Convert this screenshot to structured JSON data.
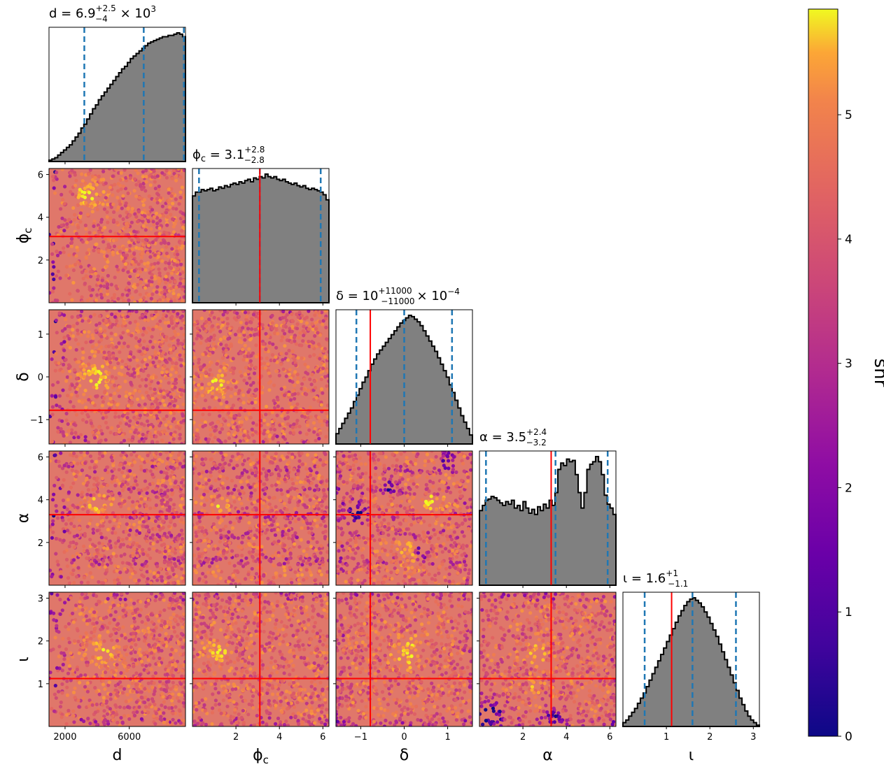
{
  "chart_data": {
    "type": "corner",
    "parameters": [
      {
        "key": "d",
        "label": "d",
        "range": [
          1000,
          9500
        ],
        "ticks": [
          2000,
          6000
        ],
        "truth": null,
        "quantiles": [
          3200,
          6900,
          9400
        ],
        "title": {
          "prefix": "d = ",
          "median": "6.9",
          "upper": "+2.5",
          "lower": "−4",
          "suffix": "× 10",
          "exp": "3"
        }
      },
      {
        "key": "phi_c",
        "label": "ϕ",
        "label_sub": "c",
        "range": [
          0,
          6.28
        ],
        "ticks": [
          2,
          4,
          6
        ],
        "truth": 3.1,
        "quantiles": [
          0.3,
          3.1,
          5.9
        ],
        "title": {
          "prefix": "ϕ",
          "prefix_sub": "c",
          "eq": " = ",
          "median": "3.1",
          "upper": "+2.8",
          "lower": "−2.8"
        }
      },
      {
        "key": "delta",
        "label": "δ",
        "range": [
          -1.57,
          1.57
        ],
        "ticks": [
          -1,
          0,
          1
        ],
        "truth": -0.78,
        "quantiles": [
          -1.1,
          0,
          1.1
        ],
        "title": {
          "prefix": "δ = ",
          "median": "10",
          "upper": "+11000",
          "lower": "−11000",
          "suffix": "× 10",
          "exp": "−4"
        }
      },
      {
        "key": "alpha",
        "label": "α",
        "range": [
          0,
          6.28
        ],
        "ticks": [
          2,
          4,
          6
        ],
        "truth": 3.3,
        "quantiles": [
          0.3,
          3.5,
          5.9
        ],
        "title": {
          "prefix": "α = ",
          "median": "3.5",
          "upper": "+2.4",
          "lower": "−3.2"
        }
      },
      {
        "key": "iota",
        "label": "ι",
        "range": [
          0,
          3.14
        ],
        "ticks": [
          1,
          2,
          3
        ],
        "truth": 1.12,
        "quantiles": [
          0.5,
          1.6,
          2.6
        ],
        "title": {
          "prefix": "ι = ",
          "median": "1.6",
          "upper": "+1",
          "lower": "−1.1"
        }
      }
    ],
    "histograms": {
      "d": [
        0.01,
        0.02,
        0.03,
        0.05,
        0.07,
        0.09,
        0.11,
        0.13,
        0.16,
        0.19,
        0.22,
        0.26,
        0.29,
        0.33,
        0.37,
        0.41,
        0.44,
        0.48,
        0.51,
        0.54,
        0.57,
        0.6,
        0.63,
        0.66,
        0.69,
        0.72,
        0.74,
        0.77,
        0.8,
        0.82,
        0.84,
        0.86,
        0.88,
        0.9,
        0.92,
        0.93,
        0.94,
        0.95,
        0.96,
        0.97,
        0.97,
        0.98,
        0.98,
        0.99,
        1.0,
        0.99,
        0.97
      ],
      "phi_c": [
        0.83,
        0.86,
        0.86,
        0.88,
        0.87,
        0.88,
        0.89,
        0.87,
        0.88,
        0.9,
        0.89,
        0.91,
        0.9,
        0.92,
        0.93,
        0.92,
        0.94,
        0.93,
        0.95,
        0.96,
        0.94,
        0.97,
        0.96,
        0.98,
        0.97,
        1.0,
        0.98,
        0.97,
        0.98,
        0.96,
        0.95,
        0.96,
        0.94,
        0.93,
        0.92,
        0.93,
        0.91,
        0.9,
        0.91,
        0.89,
        0.88,
        0.89,
        0.88,
        0.87,
        0.86,
        0.84,
        0.8
      ],
      "delta": [
        0.08,
        0.12,
        0.16,
        0.2,
        0.24,
        0.28,
        0.33,
        0.38,
        0.43,
        0.48,
        0.52,
        0.57,
        0.62,
        0.66,
        0.7,
        0.73,
        0.76,
        0.79,
        0.82,
        0.85,
        0.88,
        0.91,
        0.94,
        0.96,
        0.98,
        1.0,
        0.99,
        0.97,
        0.95,
        0.92,
        0.88,
        0.84,
        0.8,
        0.76,
        0.72,
        0.67,
        0.62,
        0.57,
        0.52,
        0.46,
        0.4,
        0.34,
        0.28,
        0.22,
        0.17,
        0.12,
        0.07
      ],
      "alpha": [
        0.58,
        0.62,
        0.66,
        0.67,
        0.69,
        0.68,
        0.66,
        0.64,
        0.62,
        0.65,
        0.63,
        0.66,
        0.6,
        0.62,
        0.58,
        0.65,
        0.6,
        0.56,
        0.59,
        0.55,
        0.61,
        0.58,
        0.63,
        0.6,
        0.66,
        0.62,
        0.72,
        0.9,
        0.95,
        0.93,
        0.98,
        0.96,
        0.97,
        0.86,
        0.72,
        0.6,
        0.72,
        0.9,
        0.94,
        0.96,
        1.0,
        0.96,
        0.86,
        0.7,
        0.63,
        0.6,
        0.55
      ],
      "iota": [
        0.03,
        0.05,
        0.08,
        0.11,
        0.14,
        0.18,
        0.22,
        0.26,
        0.31,
        0.36,
        0.41,
        0.46,
        0.51,
        0.56,
        0.61,
        0.66,
        0.71,
        0.76,
        0.81,
        0.86,
        0.9,
        0.94,
        0.97,
        0.99,
        1.0,
        0.98,
        0.96,
        0.93,
        0.89,
        0.85,
        0.8,
        0.75,
        0.7,
        0.64,
        0.58,
        0.52,
        0.46,
        0.4,
        0.34,
        0.28,
        0.22,
        0.17,
        0.12,
        0.08,
        0.05,
        0.03,
        0.01
      ]
    },
    "scatter_color": "snr",
    "colorbar": {
      "label": "snr",
      "range": [
        0,
        5.85
      ],
      "ticks": [
        0,
        1,
        2,
        3,
        4,
        5
      ],
      "colormap": "plasma"
    },
    "colors": {
      "hist_fill": "#808080",
      "hist_edge": "#000000",
      "quantile_line": "#1f77b4",
      "truth_line": "#ff0000"
    }
  }
}
